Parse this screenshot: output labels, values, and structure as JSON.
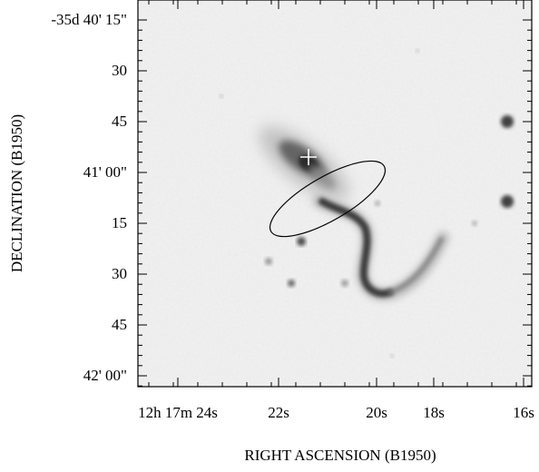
{
  "figure": {
    "xlabel": "RIGHT ASCENSION (B1950)",
    "ylabel": "DECLINATION (B1950)",
    "x_ticks": [
      "12h 17m 24s",
      "22s",
      "20s",
      "18s",
      "16s"
    ],
    "y_ticks": [
      "-35d 40' 15\"",
      "30",
      "45",
      "41' 00\"",
      "15",
      "30",
      "45",
      "42' 00\""
    ],
    "colors": {
      "frame": "#000000",
      "background": "#f0f0f0",
      "ellipse": "#000000",
      "marker": "#ffffff"
    },
    "overlays": [
      "ellipse",
      "cross-marker"
    ]
  }
}
